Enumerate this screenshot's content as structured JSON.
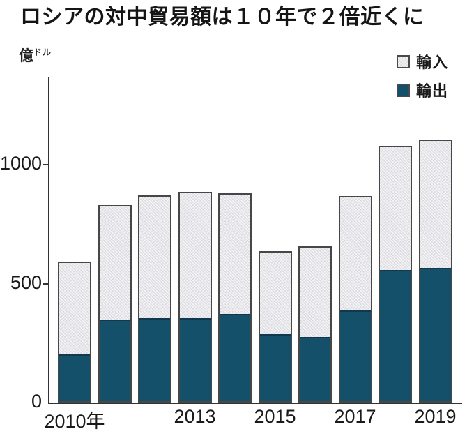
{
  "title": "ロシアの対中貿易額は１０年で２倍近くに",
  "unit_label": {
    "main": "億",
    "small": "ドル"
  },
  "legend": [
    {
      "label": "輸入",
      "key": "import"
    },
    {
      "label": "輸出",
      "key": "export"
    }
  ],
  "colors": {
    "export": "#15506b",
    "import": "#e6e5e9",
    "bar_border": "#474747",
    "axis": "#333333"
  },
  "chart_data": {
    "type": "bar",
    "stacked": true,
    "categories": [
      2010,
      2011,
      2012,
      2013,
      2014,
      2015,
      2016,
      2017,
      2018,
      2019
    ],
    "series": [
      {
        "name": "輸出",
        "values": [
          203,
          349,
          355,
          355,
          372,
          287,
          276,
          387,
          558,
          566
        ]
      },
      {
        "name": "輸入",
        "values": [
          390,
          482,
          517,
          532,
          508,
          349,
          382,
          480,
          520,
          540
        ]
      }
    ],
    "totals": [
      593,
      831,
      872,
      887,
      880,
      636,
      658,
      867,
      1078,
      1106
    ],
    "title": "ロシアの対中貿易額は１０年で２倍近くに",
    "ylabel": "億ドル",
    "yticks": [
      0,
      500,
      1000
    ],
    "ylim": [
      0,
      1370
    ],
    "x_tick_labels": [
      {
        "index": 0,
        "label": "2010年"
      },
      {
        "index": 3,
        "label": "2013"
      },
      {
        "index": 5,
        "label": "2015"
      },
      {
        "index": 7,
        "label": "2017"
      },
      {
        "index": 9,
        "label": "2019"
      }
    ],
    "legend_position": "top-right",
    "grid": false
  }
}
